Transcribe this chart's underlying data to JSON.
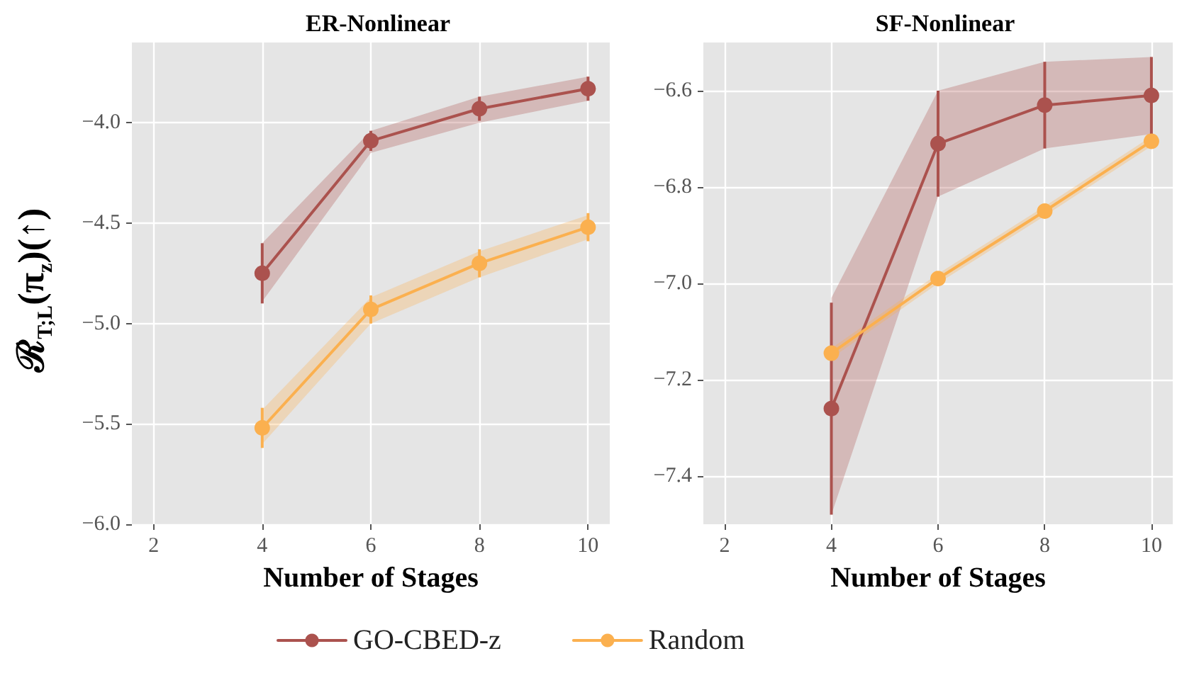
{
  "chart_data": [
    {
      "type": "line",
      "title": "ER-Nonlinear",
      "xlabel": "Number of Stages",
      "ylabel": "ℛ$_{T;L}$(π$_{z}$)(↑)",
      "x": [
        4,
        6,
        8,
        10
      ],
      "xlim": [
        1.6,
        10.4
      ],
      "xticks": [
        2,
        4,
        6,
        8,
        10
      ],
      "ylim": [
        -6.0,
        -3.6
      ],
      "yticks": [
        {
          "value": -6.0,
          "label": "−6.0"
        },
        {
          "value": -5.5,
          "label": "−5.5"
        },
        {
          "value": -5.0,
          "label": "−5.0"
        },
        {
          "value": -4.5,
          "label": "−4.5"
        },
        {
          "value": -4.0,
          "label": "−4.0"
        }
      ],
      "grid": true,
      "legend": "bottom",
      "marker": "circle",
      "line_style": "solid",
      "series": [
        {
          "name": "GO-CBED-z",
          "color": "#ab524e",
          "values": [
            -4.75,
            -4.09,
            -3.93,
            -3.83
          ],
          "errors": [
            [
              -4.9,
              -4.6
            ],
            0.05,
            0.06,
            0.06
          ],
          "lower": [
            -4.89,
            -4.15,
            -4.0,
            -3.89
          ],
          "upper": [
            -4.6,
            -4.04,
            -3.87,
            -3.77
          ]
        },
        {
          "name": "Random",
          "color": "#fbb04f",
          "values": [
            -5.52,
            -4.93,
            -4.7,
            -4.52
          ],
          "errors": [
            0.1,
            0.07,
            0.07,
            0.07
          ],
          "lower": [
            -5.6,
            -5.0,
            -4.77,
            -4.58
          ],
          "upper": [
            -5.43,
            -4.87,
            -4.64,
            -4.46
          ]
        }
      ]
    },
    {
      "type": "line",
      "title": "SF-Nonlinear",
      "xlabel": "Number of Stages",
      "x": [
        4,
        6,
        8,
        10
      ],
      "xlim": [
        1.6,
        10.4
      ],
      "xticks": [
        2,
        4,
        6,
        8,
        10
      ],
      "ylim": [
        -7.5,
        -6.5
      ],
      "yticks": [
        {
          "value": -7.4,
          "label": "−7.4"
        },
        {
          "value": -7.2,
          "label": "−7.2"
        },
        {
          "value": -7.0,
          "label": "−7.0"
        },
        {
          "value": -6.8,
          "label": "−6.8"
        },
        {
          "value": -6.6,
          "label": "−6.6"
        }
      ],
      "grid": true,
      "marker": "circle",
      "line_style": "solid",
      "series": [
        {
          "color": "#ab524e",
          "values": [
            -7.26,
            -6.71,
            -6.63,
            -6.61
          ],
          "errors": [
            [
              -7.48,
              -7.04
            ],
            0.11,
            0.09,
            0.08
          ],
          "lower": [
            -7.48,
            -6.82,
            -6.72,
            -6.69
          ],
          "upper": [
            -7.03,
            -6.6,
            -6.54,
            -6.53
          ]
        },
        {
          "color": "#fbb04f",
          "values": [
            -7.145,
            -6.99,
            -6.85,
            -6.705
          ],
          "lower": [
            -7.155,
            -7.0,
            -6.86,
            -6.715
          ],
          "upper": [
            -7.135,
            -6.98,
            -6.84,
            -6.695
          ]
        }
      ]
    }
  ]
}
